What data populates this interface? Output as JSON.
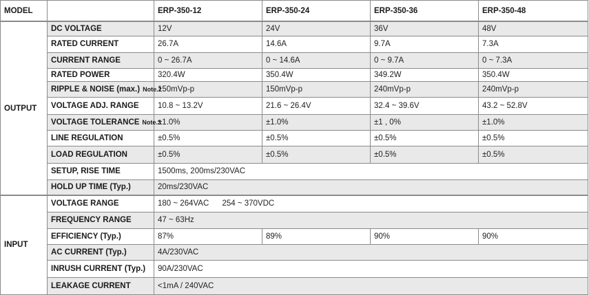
{
  "header": {
    "model_label": "MODEL",
    "models": [
      "ERP-350-12",
      "ERP-350-24",
      "ERP-350-36",
      "ERP-350-48"
    ]
  },
  "output": {
    "category": "OUTPUT",
    "rows": [
      {
        "label": "DC VOLTAGE",
        "values": [
          "12V",
          "24V",
          "36V",
          "48V"
        ]
      },
      {
        "label": "RATED CURRENT",
        "values": [
          "26.7A",
          "14.6A",
          "9.7A",
          "7.3A"
        ]
      },
      {
        "label": "CURRENT RANGE",
        "values": [
          "0 ~ 26.7A",
          "0 ~ 14.6A",
          "0 ~ 9.7A",
          "0 ~ 7.3A"
        ]
      },
      {
        "label": "RATED POWER",
        "values": [
          "320.4W",
          "350.4W",
          "349.2W",
          "350.4W"
        ]
      },
      {
        "label": "RIPPLE & NOISE (max.)",
        "note": "Note.2",
        "values": [
          "150mVp-p",
          "150mVp-p",
          "240mVp-p",
          "240mVp-p"
        ]
      },
      {
        "label": "VOLTAGE ADJ. RANGE",
        "values": [
          "10.8 ~ 13.2V",
          "21.6 ~ 26.4V",
          "32.4 ~ 39.6V",
          "43.2 ~ 52.8V"
        ]
      },
      {
        "label": "VOLTAGE TOLERANCE",
        "note": "Note.3",
        "values": [
          "±1.0%",
          "±1.0%",
          "±1 , 0%",
          "±1.0%"
        ]
      },
      {
        "label": "LINE REGULATION",
        "values": [
          "±0.5%",
          "±0.5%",
          "±0.5%",
          "±0.5%"
        ]
      },
      {
        "label": "LOAD REGULATION",
        "values": [
          "±0.5%",
          "±0.5%",
          "±0.5%",
          "±0.5%"
        ]
      },
      {
        "label": "SETUP, RISE TIME",
        "value": "1500ms, 200ms/230VAC"
      },
      {
        "label": "HOLD UP TIME (Typ.)",
        "value": "20ms/230VAC"
      }
    ]
  },
  "input": {
    "category": "INPUT",
    "rows": [
      {
        "label": "VOLTAGE RANGE",
        "value": "180 ~ 264VAC      254 ~ 370VDC"
      },
      {
        "label": "FREQUENCY RANGE",
        "value": "47 ~ 63Hz"
      },
      {
        "label": "EFFICIENCY (Typ.)",
        "values": [
          "87%",
          "89%",
          "90%",
          "90%"
        ]
      },
      {
        "label": "AC CURRENT (Typ.)",
        "value": "4A/230VAC"
      },
      {
        "label": "INRUSH CURRENT (Typ.)",
        "value": "90A/230VAC"
      },
      {
        "label": "LEAKAGE CURRENT",
        "value": "<1mA / 240VAC"
      }
    ]
  }
}
